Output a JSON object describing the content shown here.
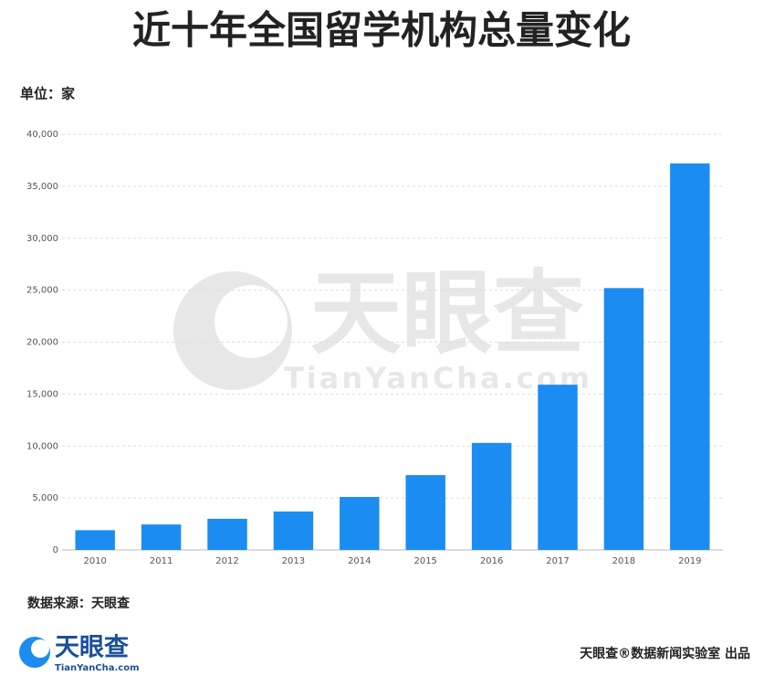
{
  "chart_data": {
    "type": "bar",
    "title": "近十年全国留学机构总量变化",
    "subtitle": "单位：家",
    "categories": [
      "2010",
      "2011",
      "2012",
      "2013",
      "2014",
      "2015",
      "2016",
      "2017",
      "2018",
      "2019"
    ],
    "values": [
      1900,
      2450,
      3000,
      3700,
      5100,
      7200,
      10300,
      15900,
      25200,
      37200
    ],
    "color": "#1b8cf2",
    "ylim": [
      0,
      40000
    ],
    "yticks": [
      0,
      {
        "value": 5000,
        "label": "5,000"
      },
      {
        "value": 10000,
        "label": "10,000"
      },
      {
        "value": 15000,
        "label": "15,000"
      },
      {
        "value": 20000,
        "label": "20,000"
      },
      {
        "value": 25000,
        "label": "25,000"
      },
      {
        "value": 30000,
        "label": "30,000"
      },
      {
        "value": 35000,
        "label": "35,000"
      },
      {
        "value": 40000,
        "label": "40,000"
      }
    ],
    "grid": true,
    "source": "数据来源：天眼查"
  },
  "watermark": {
    "name": "天眼查",
    "url": "TianYanCha.com"
  },
  "logo": {
    "name": "天眼查",
    "url": "TianYanCha.com"
  },
  "credit": "天眼查®数据新闻实验室 出品"
}
